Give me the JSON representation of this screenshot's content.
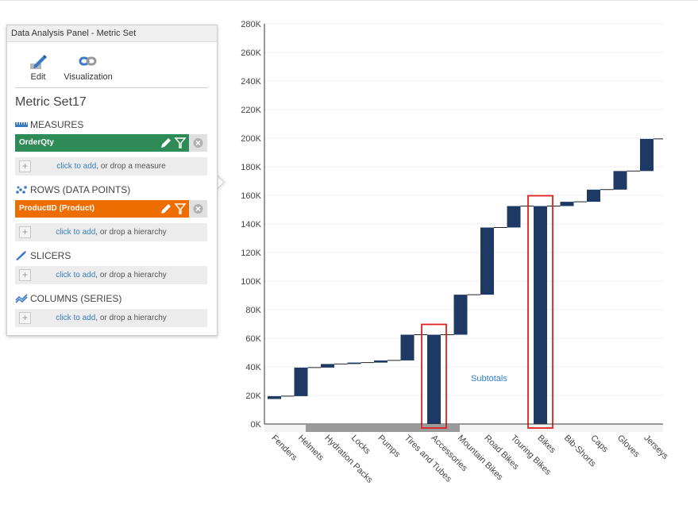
{
  "panel": {
    "title": "Data Analysis Panel - Metric Set",
    "toolbar": {
      "edit_label": "Edit",
      "visualization_label": "Visualization"
    },
    "metric_set_name": "Metric Set17",
    "measures": {
      "title": "MEASURES",
      "field": "OrderQty",
      "field_color": "#2e8b57",
      "drop_link": "click to add",
      "drop_text": ", or drop a measure"
    },
    "rows": {
      "title": "ROWS (DATA POINTS)",
      "field": "ProductID (Product)",
      "field_color": "#ee6d00",
      "drop_link": "click to add",
      "drop_text": ", or drop a hierarchy"
    },
    "slicers": {
      "title": "SLICERS",
      "drop_link": "click to add",
      "drop_text": ", or drop a hierarchy"
    },
    "columns": {
      "title": "COLUMNS (SERIES)",
      "drop_link": "click to add",
      "drop_text": ", or drop a hierarchy"
    }
  },
  "chart_data": {
    "type": "waterfall",
    "bar_color": "#1e3a64",
    "highlight_color": "#e02020",
    "categories": [
      "Fenders",
      "Helmets",
      "Hydration Packs",
      "Locks",
      "Pumps",
      "Tires and Tubes",
      "Accessories",
      "Mountain Bikes",
      "Road Bikes",
      "Touring Bikes",
      "Bikes",
      "Bib-Shorts",
      "Caps",
      "Gloves",
      "Jerseys"
    ],
    "bars": [
      {
        "category": "Fenders",
        "start": 17500,
        "end": 19500,
        "subtotal": false
      },
      {
        "category": "Helmets",
        "start": 19500,
        "end": 39500,
        "subtotal": false
      },
      {
        "category": "Hydration Packs",
        "start": 39500,
        "end": 42000,
        "subtotal": false
      },
      {
        "category": "Locks",
        "start": 42000,
        "end": 43000,
        "subtotal": false
      },
      {
        "category": "Pumps",
        "start": 43000,
        "end": 44500,
        "subtotal": false
      },
      {
        "category": "Tires and Tubes",
        "start": 44500,
        "end": 62500,
        "subtotal": false
      },
      {
        "category": "Accessories",
        "start": 0,
        "end": 62500,
        "subtotal": true
      },
      {
        "category": "Mountain Bikes",
        "start": 62500,
        "end": 90500,
        "subtotal": false
      },
      {
        "category": "Road Bikes",
        "start": 90500,
        "end": 137500,
        "subtotal": false
      },
      {
        "category": "Touring Bikes",
        "start": 137500,
        "end": 152500,
        "subtotal": false
      },
      {
        "category": "Bikes",
        "start": 0,
        "end": 152500,
        "subtotal": true
      },
      {
        "category": "Bib-Shorts",
        "start": 152500,
        "end": 155500,
        "subtotal": false
      },
      {
        "category": "Caps",
        "start": 155500,
        "end": 164000,
        "subtotal": false
      },
      {
        "category": "Gloves",
        "start": 164000,
        "end": 177000,
        "subtotal": false
      },
      {
        "category": "Jerseys",
        "start": 177000,
        "end": 199500,
        "subtotal": false
      }
    ],
    "y_ticks": [
      "0K",
      "20K",
      "40K",
      "60K",
      "80K",
      "100K",
      "120K",
      "140K",
      "160K",
      "180K",
      "200K",
      "220K",
      "240K",
      "260K",
      "280K"
    ],
    "ylim": [
      0,
      280000
    ],
    "grid": true,
    "annotation": "Subtotals"
  }
}
